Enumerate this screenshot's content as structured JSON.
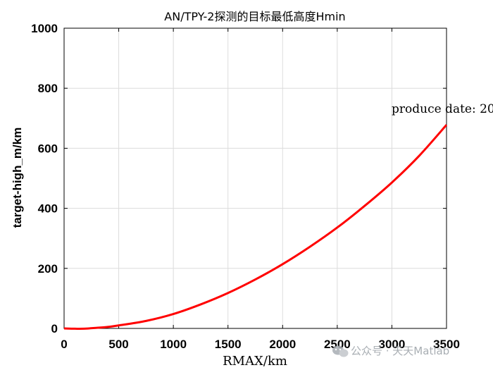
{
  "chart_data": {
    "type": "line",
    "title": "AN/TPY-2探测的目标最低高度Hmin",
    "xlabel": "RMAX/km",
    "ylabel": "target-high_m/km",
    "xlim": [
      0,
      3500
    ],
    "ylim": [
      0,
      1000
    ],
    "xticks": [
      0,
      500,
      1000,
      1500,
      2000,
      2500,
      3000,
      3500
    ],
    "yticks": [
      0,
      200,
      400,
      600,
      800,
      1000
    ],
    "grid": true,
    "series": [
      {
        "color": "#ff0000",
        "x": [
          0,
          100,
          200,
          300,
          400,
          500,
          750,
          1000,
          1250,
          1500,
          1750,
          2000,
          2250,
          2500,
          2750,
          3000,
          3250,
          3500
        ],
        "y": [
          0,
          -1,
          -0.5,
          2,
          5,
          10,
          25,
          48,
          80,
          118,
          163,
          214,
          272,
          336,
          408,
          486,
          575,
          678
        ]
      }
    ],
    "annotation": "produce date: 20"
  },
  "watermark": {
    "text": "公众号 · 天天Matlab"
  }
}
